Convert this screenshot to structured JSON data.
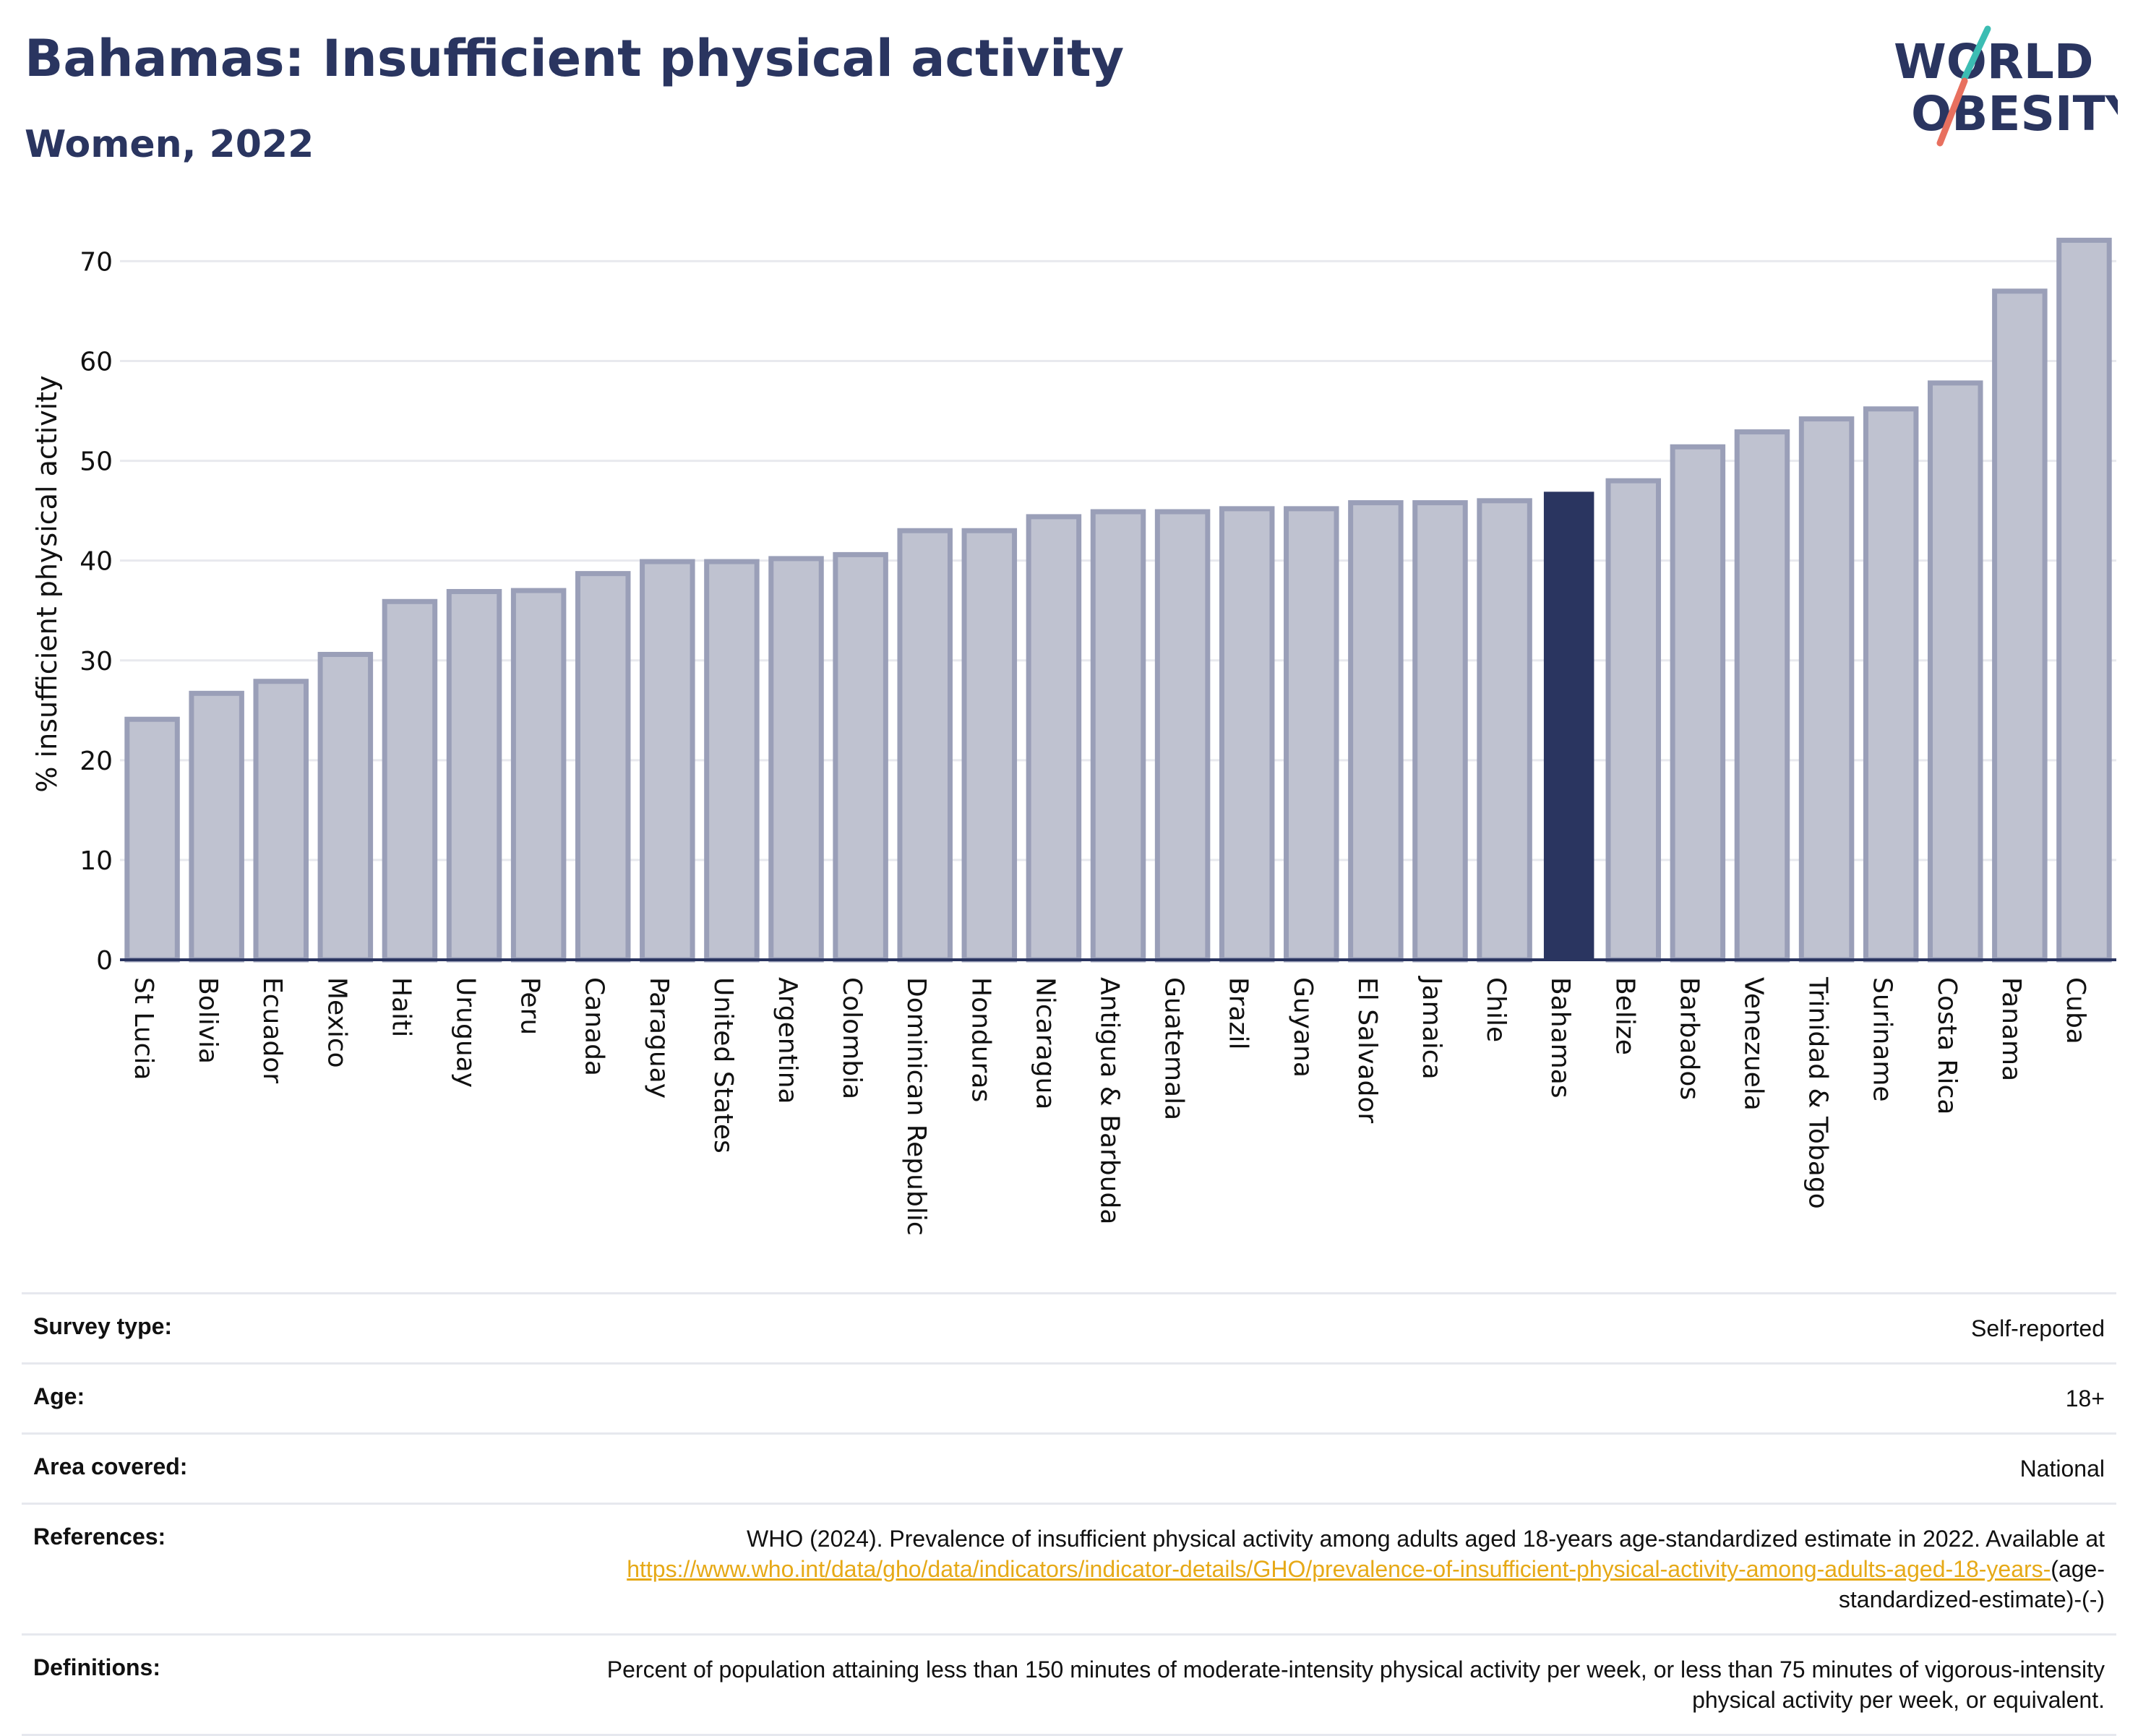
{
  "header": {
    "title": "Bahamas: Insufficient physical activity",
    "subtitle": "Women, 2022"
  },
  "logo": {
    "text_line1": "WORLD",
    "text_line2": "OBESITY",
    "colors": {
      "text": "#2a3560",
      "slash_teal": "#3cbdb3",
      "slash_coral": "#e8705f"
    }
  },
  "chart_data": {
    "type": "bar",
    "ylabel": "% insufficient physical activity",
    "xlabel": "",
    "ylim": [
      0,
      73
    ],
    "yticks": [
      0,
      10,
      20,
      30,
      40,
      50,
      60,
      70
    ],
    "grid": true,
    "highlight": "Bahamas",
    "colors": {
      "bar": "#bfc2d0",
      "bar_edge": "#9a9fb8",
      "highlight": "#2a3560",
      "axis": "#2a3560",
      "grid": "#e8e9ee"
    },
    "categories": [
      "St Lucia",
      "Bolivia",
      "Ecuador",
      "Mexico",
      "Haiti",
      "Uruguay",
      "Peru",
      "Canada",
      "Paraguay",
      "United States",
      "Argentina",
      "Colombia",
      "Dominican Republic",
      "Honduras",
      "Nicaragua",
      "Antigua & Barbuda",
      "Guatemala",
      "Brazil",
      "Guyana",
      "El Salvador",
      "Jamaica",
      "Chile",
      "Bahamas",
      "Belize",
      "Barbados",
      "Venezuela",
      "Trinidad & Tobago",
      "Suriname",
      "Costa Rica",
      "Panama",
      "Cuba"
    ],
    "values": [
      24.1,
      26.7,
      27.9,
      30.6,
      35.9,
      36.9,
      37.0,
      38.7,
      39.9,
      39.9,
      40.2,
      40.6,
      43.0,
      43.0,
      44.4,
      44.9,
      44.9,
      45.2,
      45.2,
      45.8,
      45.8,
      46.0,
      46.9,
      48.0,
      51.4,
      52.9,
      54.2,
      55.2,
      57.8,
      67.0,
      72.1
    ]
  },
  "metadata": [
    {
      "label": "Survey type:",
      "value": "Self-reported"
    },
    {
      "label": "Age:",
      "value": "18+"
    },
    {
      "label": "Area covered:",
      "value": "National"
    },
    {
      "label": "References:",
      "value_prefix": "WHO (2024). Prevalence of insufficient physical activity among adults aged 18-years age-standardized estimate in 2022. Available at ",
      "link": "https://www.who.int/data/gho/data/indicators/indicator-details/GHO/prevalence-of-insufficient-physical-activity-among-adults-aged-18-years-",
      "value_suffix": "(age-standardized-estimate)-(-)"
    },
    {
      "label": "Definitions:",
      "value": "Percent of population attaining less than 150 minutes of moderate-intensity physical activity per week, or less than 75 minutes of vigorous-intensity physical activity per week, or equivalent."
    }
  ]
}
